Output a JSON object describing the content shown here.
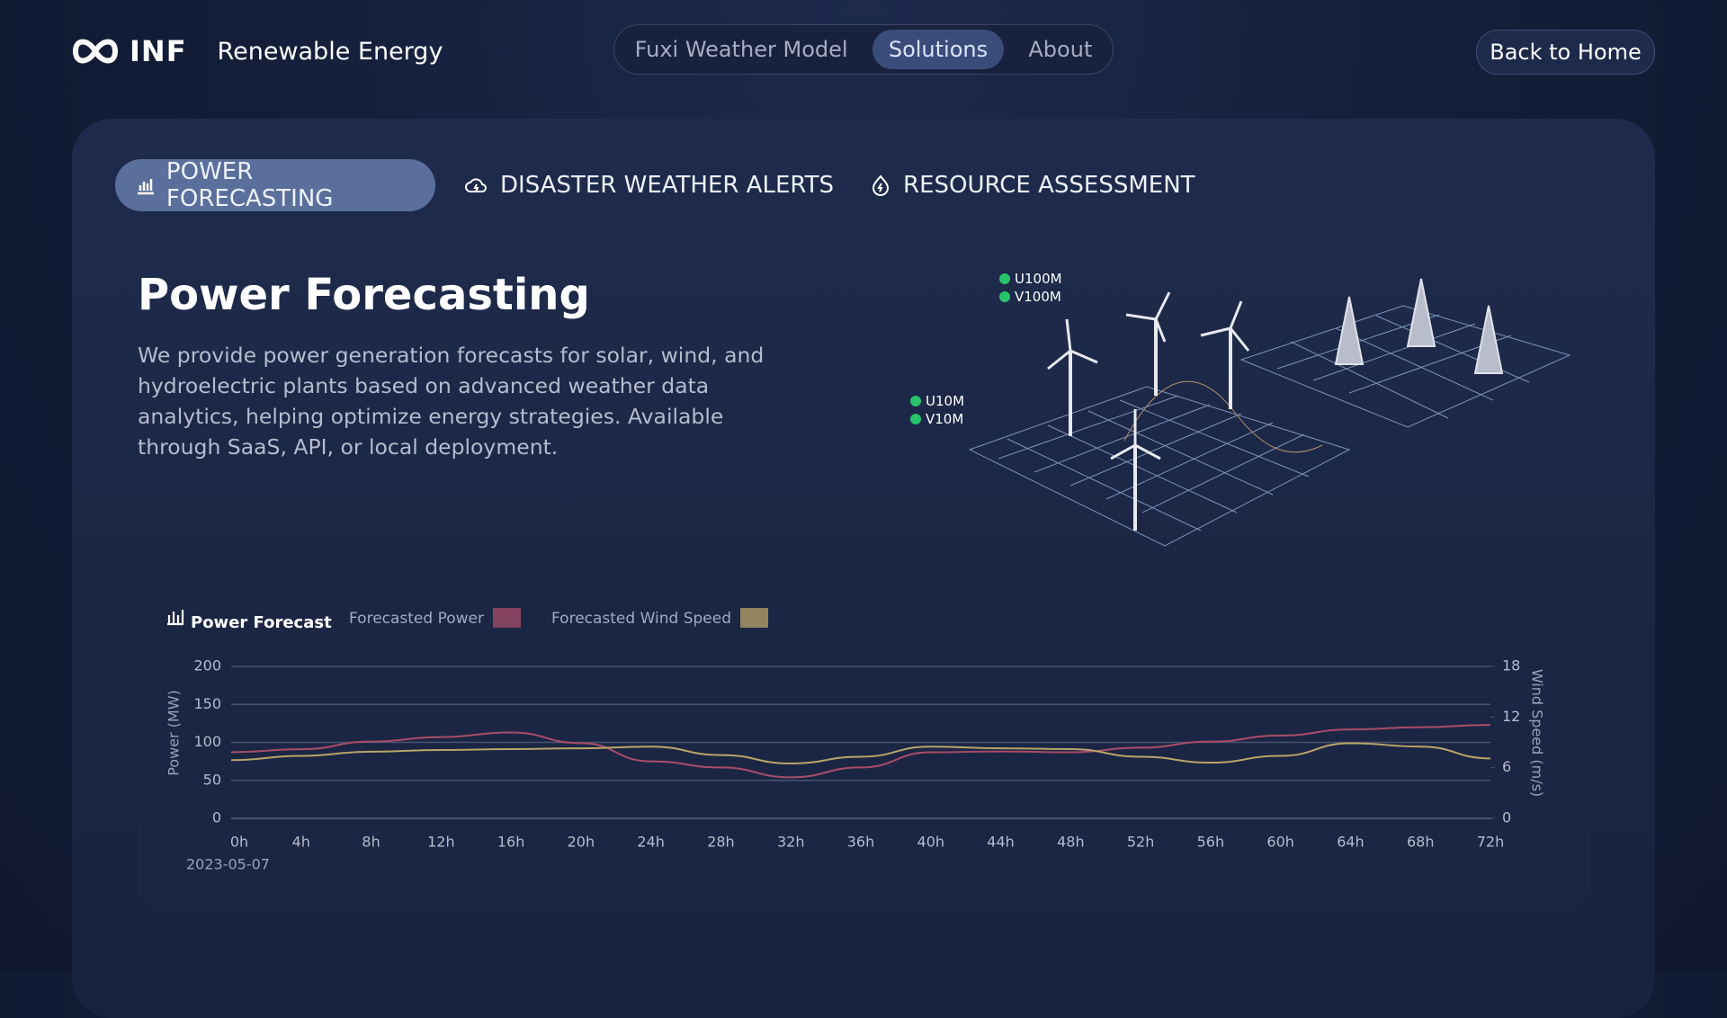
{
  "header": {
    "logo": "INF",
    "title": "Renewable Energy",
    "nav": [
      "Fuxi Weather Model",
      "Solutions",
      "About"
    ],
    "back_button": "Back to Home"
  },
  "tabs": [
    "POWER FORECASTING",
    "DISASTER WEATHER ALERTS",
    "RESOURCE ASSESSMENT"
  ],
  "hero": {
    "title": "Power Forecasting",
    "description": "We provide power generation forecasts for solar, wind, and hydroelectric plants based on advanced weather data analytics, helping optimize energy strategies. Available through SaaS, API, or local deployment."
  },
  "illustration": {
    "labels": [
      "U100M",
      "V100M",
      "U10M",
      "V10M"
    ]
  },
  "chart_data": {
    "type": "line",
    "title": "Power Forecast",
    "categories": [
      "0h",
      "4h",
      "8h",
      "12h",
      "16h",
      "20h",
      "24h",
      "28h",
      "32h",
      "36h",
      "40h",
      "44h",
      "48h",
      "52h",
      "56h",
      "60h",
      "64h",
      "68h",
      "72h"
    ],
    "annotation": "2023-05-07",
    "series": [
      {
        "name": "Forecasted Power",
        "color": "#a84d68",
        "values": [
          87,
          91,
          101,
          107,
          113,
          99,
          75,
          67,
          54,
          67,
          87,
          88,
          87,
          93,
          101,
          109,
          117,
          120,
          123
        ]
      },
      {
        "name": "Forecasted Wind Speed",
        "color": "#b9a468",
        "axis": "y2",
        "values": [
          6.9,
          7.4,
          7.9,
          8.1,
          8.2,
          8.3,
          8.5,
          7.5,
          6.5,
          7.3,
          8.5,
          8.3,
          8.2,
          7.3,
          6.6,
          7.4,
          8.9,
          8.5,
          7.1
        ]
      }
    ],
    "ylabel": "Power (MW)",
    "y2label": "Wind Speed (m/s)",
    "ylim": [
      0,
      200
    ],
    "yticks": [
      0,
      50,
      100,
      150,
      200
    ],
    "y2lim": [
      0,
      18
    ],
    "y2ticks": [
      0,
      6,
      12,
      18
    ],
    "grid": true
  }
}
